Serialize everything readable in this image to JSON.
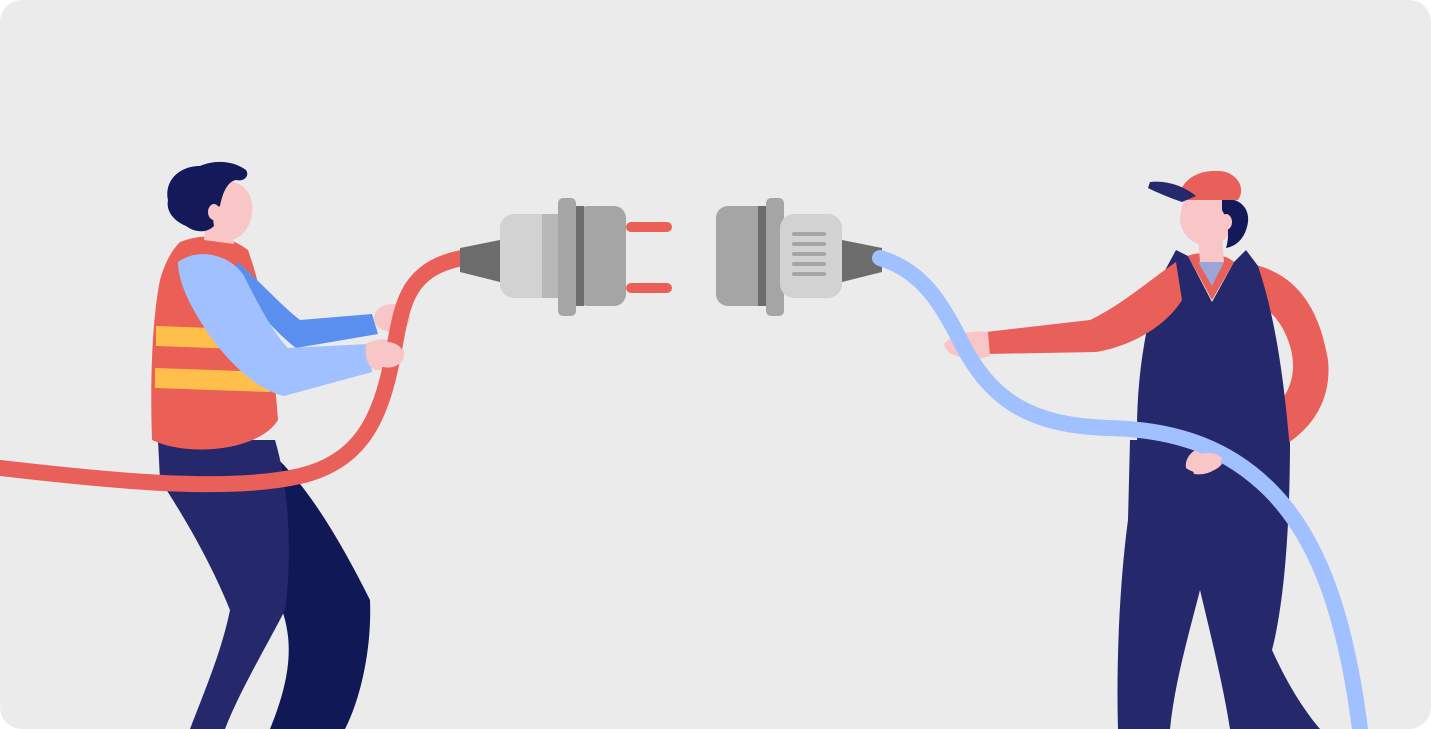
{
  "illustration": {
    "scene": "two-workers-connecting-plug-and-socket",
    "palette": {
      "background": "#ebebeb",
      "navy": "#25296b",
      "navy_dark": "#111856",
      "hair": "#14195a",
      "skin": "#f8c6c6",
      "coral": "#e95f59",
      "vest_red": "#ea5f56",
      "vest_stripe": "#fec04b",
      "sleeve_light_blue": "#a0c0ff",
      "sleeve_blue": "#5b8fef",
      "cable_red": "#e95f59",
      "cable_blue": "#a0c0ff",
      "plug_gray": "#a5a5a5",
      "plug_light": "#d2d2d2",
      "plug_dark": "#6c6c6c",
      "prong_red": "#ea5f56"
    },
    "icons": {
      "left_worker": "worker-with-safety-vest",
      "right_worker": "worker-with-cap-and-overalls",
      "plug": "electric-plug-icon",
      "socket": "electric-socket-icon"
    }
  }
}
